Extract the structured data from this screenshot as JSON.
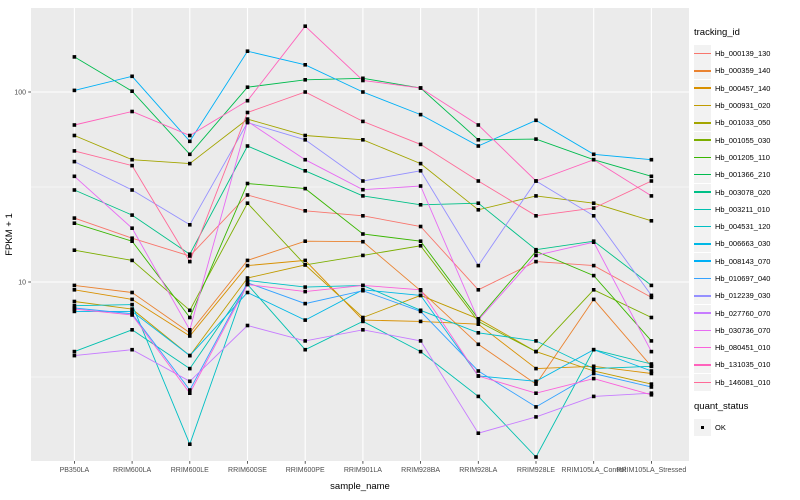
{
  "figure": {
    "panel_bg": "#EBEBEB",
    "grid_color": "#FFFFFF",
    "legend_key_bg": "#F2F2F2",
    "tick_text_color": "#4D4D4D",
    "legend": {
      "tracking_title": "tracking_id",
      "quant_title": "quant_status",
      "quant_label": "OK",
      "quant_symbol": "black-square"
    }
  },
  "chart_data": {
    "type": "line",
    "title": "",
    "xlabel": "sample_name",
    "ylabel": "FPKM + 1",
    "y_scale": "log10",
    "ylim": [
      1.1,
      280
    ],
    "y_major_ticks": [
      100,
      10
    ],
    "y_minor_gridlines": [
      31.62,
      3.162
    ],
    "grid": true,
    "legend_position": "right",
    "point_shape": "filled-square",
    "point_color": "#000000",
    "categories": [
      "PB350LA",
      "RRIM600LA",
      "RRIM600LE",
      "RRIM600SE",
      "RRIM600PE",
      "RRIM901LA",
      "RRIM928BA",
      "RRIM928LA",
      "RRIM928LE",
      "RRIM105LA_Control",
      "RRIM105LA_Stressed"
    ],
    "series": [
      {
        "name": "Hb_000139_130",
        "color": "#F8766D",
        "values": [
          21.7,
          17.0,
          13.7,
          28.7,
          23.7,
          22.3,
          19.6,
          9.1,
          12.8,
          12.2,
          8.3
        ]
      },
      {
        "name": "Hb_000359_140",
        "color": "#EA8331",
        "values": [
          9.6,
          8.8,
          5.4,
          13.0,
          16.4,
          16.3,
          9.0,
          4.7,
          2.9,
          8.1,
          3.6
        ]
      },
      {
        "name": "Hb_000457_140",
        "color": "#D89000",
        "values": [
          9.1,
          8.1,
          5.2,
          12.2,
          13.0,
          6.3,
          6.2,
          6.0,
          3.5,
          3.6,
          3.3
        ]
      },
      {
        "name": "Hb_000931_020",
        "color": "#C09B00",
        "values": [
          7.9,
          7.2,
          4.1,
          10.5,
          12.3,
          6.5,
          8.5,
          6.4,
          4.3,
          3.4,
          2.9
        ]
      },
      {
        "name": "Hb_001033_050",
        "color": "#A3A500",
        "values": [
          59,
          44,
          42,
          72,
          59,
          56,
          42,
          24,
          28.4,
          26,
          21
        ]
      },
      {
        "name": "Hb_001055_030",
        "color": "#7CAE00",
        "values": [
          14.7,
          13.0,
          7.1,
          26,
          12.3,
          13.8,
          15.5,
          6.2,
          4.3,
          9.1,
          6.5
        ]
      },
      {
        "name": "Hb_001205_110",
        "color": "#39B600",
        "values": [
          20.4,
          16.4,
          6.5,
          33,
          31,
          17.9,
          16.4,
          6.4,
          14.5,
          10.8,
          4.9
        ]
      },
      {
        "name": "Hb_001366_210",
        "color": "#00BB4E",
        "values": [
          153,
          101,
          47,
          106,
          116,
          118,
          105,
          56,
          56.5,
          44,
          36
        ]
      },
      {
        "name": "Hb_003078_020",
        "color": "#00C087",
        "values": [
          30.5,
          22.5,
          14.0,
          52,
          38.5,
          28.4,
          25.5,
          26,
          14.8,
          16.4,
          9.6
        ]
      },
      {
        "name": "Hb_003211_010",
        "color": "#00C0AF",
        "values": [
          4.3,
          5.6,
          3.5,
          9.7,
          4.4,
          6.2,
          4.3,
          2.5,
          1.2,
          4.4,
          3.7
        ]
      },
      {
        "name": "Hb_004531_120",
        "color": "#00BFC4",
        "values": [
          7.5,
          7.6,
          1.4,
          10.2,
          9.4,
          9.6,
          7.1,
          5.4,
          4.9,
          3.5,
          3.6
        ]
      },
      {
        "name": "Hb_006663_030",
        "color": "#00B8E5",
        "values": [
          7.0,
          7.0,
          4.1,
          8.8,
          6.3,
          9.1,
          8.5,
          3.2,
          3.0,
          4.4,
          3.4
        ]
      },
      {
        "name": "Hb_008143_070",
        "color": "#00B0F6",
        "values": [
          102,
          121,
          55,
          164,
          139,
          100,
          76,
          52,
          71,
          47,
          44
        ]
      },
      {
        "name": "Hb_010697_040",
        "color": "#35A2FF",
        "values": [
          7.3,
          6.8,
          2.7,
          9.9,
          7.7,
          9.0,
          7.0,
          3.4,
          2.2,
          3.3,
          2.8
        ]
      },
      {
        "name": "Hb_012239_030",
        "color": "#9590FF",
        "values": [
          43,
          30.5,
          20,
          69,
          56,
          34,
          38.5,
          12.2,
          34,
          22.3,
          8.5
        ]
      },
      {
        "name": "Hb_027760_070",
        "color": "#C77CFF",
        "values": [
          4.1,
          4.4,
          3.0,
          5.9,
          4.9,
          5.6,
          4.9,
          1.6,
          1.95,
          2.5,
          2.6
        ]
      },
      {
        "name": "Hb_030736_070",
        "color": "#E76BF3",
        "values": [
          36,
          19.2,
          5.6,
          70,
          44,
          30.6,
          32,
          6.3,
          13.8,
          16.2,
          4.3
        ]
      },
      {
        "name": "Hb_080451_010",
        "color": "#FA62DB",
        "values": [
          7.2,
          6.7,
          2.6,
          9.7,
          8.9,
          9.6,
          9.1,
          3.2,
          2.6,
          3.1,
          2.55
        ]
      },
      {
        "name": "Hb_131035_010",
        "color": "#FF62BC",
        "values": [
          67,
          79,
          59,
          90,
          222,
          115,
          105,
          67,
          34,
          44,
          28.4
        ]
      },
      {
        "name": "Hb_146081_010",
        "color": "#FF6A98",
        "values": [
          49,
          41,
          12.8,
          78,
          100,
          70,
          53,
          34,
          22.3,
          24.5,
          34
        ]
      }
    ]
  }
}
